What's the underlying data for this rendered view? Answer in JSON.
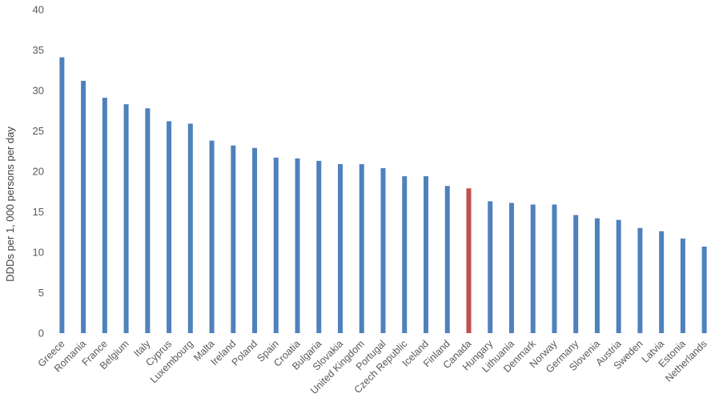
{
  "chart_data": {
    "type": "bar",
    "title": "",
    "xlabel": "",
    "ylabel": "DDDs per 1, 000 persons  per day",
    "ylim": [
      0,
      40
    ],
    "yticks": [
      0,
      5,
      10,
      15,
      20,
      25,
      30,
      35,
      40
    ],
    "grid": false,
    "legend": "none",
    "bar_color": "#4F81BD",
    "highlight_color": "#C0504D",
    "highlight_category": "Canada",
    "categories": [
      "Greece",
      "Romania",
      "France",
      "Belgium",
      "Italy",
      "Cyprus",
      "Luxembourg",
      "Malta",
      "Ireland",
      "Poland",
      "Spain",
      "Croatia",
      "Bulgaria",
      "Slovakia",
      "United Kingdom",
      "Portugal",
      "Czech Republic",
      "Iceland",
      "Finland",
      "Canada",
      "Hungary",
      "Lithuania",
      "Denmark",
      "Norway",
      "Germany",
      "Slovenia",
      "Austria",
      "Sweden",
      "Latvia",
      "Estonia",
      "Netherlands"
    ],
    "values": [
      34.1,
      31.2,
      29.1,
      28.3,
      27.8,
      26.2,
      25.9,
      23.8,
      23.2,
      22.9,
      21.7,
      21.6,
      21.3,
      20.9,
      20.9,
      20.4,
      19.4,
      19.4,
      18.2,
      17.9,
      16.3,
      16.1,
      15.9,
      15.9,
      14.6,
      14.2,
      14.0,
      13.0,
      12.6,
      11.7,
      10.7
    ]
  }
}
